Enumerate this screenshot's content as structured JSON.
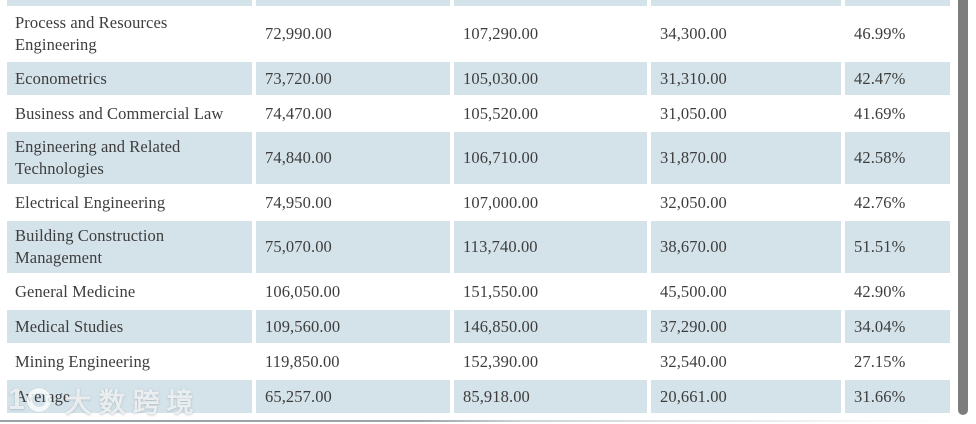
{
  "table": {
    "partial_top_row_visible": true,
    "rows": [
      {
        "field": "Process and Resources Engineering",
        "values": [
          "72,990.00",
          "107,290.00",
          "34,300.00",
          "46.99%"
        ]
      },
      {
        "field": "Econometrics",
        "values": [
          "73,720.00",
          "105,030.00",
          "31,310.00",
          "42.47%"
        ]
      },
      {
        "field": "Business and Commercial Law",
        "values": [
          "74,470.00",
          "105,520.00",
          "31,050.00",
          "41.69%"
        ]
      },
      {
        "field": "Engineering and Related Technologies",
        "values": [
          "74,840.00",
          "106,710.00",
          "31,870.00",
          "42.58%"
        ]
      },
      {
        "field": "Electrical Engineering",
        "values": [
          "74,950.00",
          "107,000.00",
          "32,050.00",
          "42.76%"
        ]
      },
      {
        "field": "Building Construction Management",
        "values": [
          "75,070.00",
          "113,740.00",
          "38,670.00",
          "51.51%"
        ]
      },
      {
        "field": "General Medicine",
        "values": [
          "106,050.00",
          "151,550.00",
          "45,500.00",
          "42.90%"
        ]
      },
      {
        "field": "Medical Studies",
        "values": [
          "109,560.00",
          "146,850.00",
          "37,290.00",
          "34.04%"
        ]
      },
      {
        "field": "Mining Engineering",
        "values": [
          "119,850.00",
          "152,390.00",
          "32,540.00",
          "27.15%"
        ]
      },
      {
        "field": "Average",
        "values": [
          "65,257.00",
          "85,918.00",
          "20,661.00",
          "31.66%"
        ]
      }
    ]
  },
  "watermark": {
    "logo_text": "1",
    "text": "大数跨境"
  },
  "colors": {
    "row_stripe": "#d4e2ea",
    "text": "#3d3d3d",
    "scrollbar_thumb": "#7d7d7d"
  }
}
